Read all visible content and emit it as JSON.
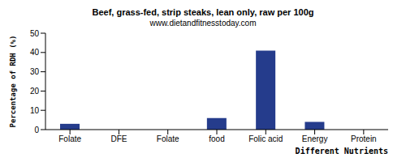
{
  "chart_data": {
    "type": "bar",
    "title": "Beef, grass-fed, strip steaks, lean only, raw per 100g",
    "subtitle": "www.dietandfitnesstoday.com",
    "x_label": "Different Nutrients",
    "y_label": "Percentage of RDH (%)",
    "categories": [
      "Folate",
      "DFE",
      "Folate",
      "food",
      "Folic acid",
      "Energy",
      "Protein"
    ],
    "values": [
      3,
      0,
      0,
      6,
      41,
      4,
      0
    ],
    "color": "#253c8c",
    "ylim": [
      0,
      50
    ],
    "yticks": [
      0,
      10,
      20,
      30,
      40,
      50
    ],
    "grid": false
  }
}
